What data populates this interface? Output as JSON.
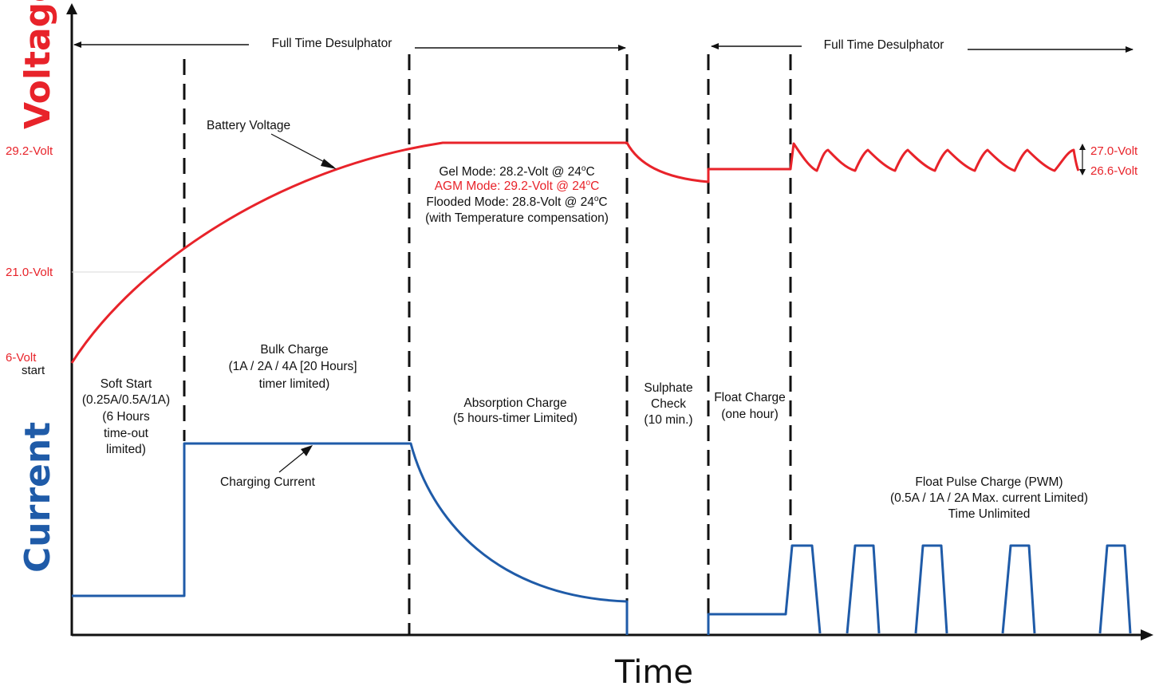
{
  "chart_data": {
    "type": "line",
    "title": "",
    "xlabel": "Time",
    "ylabel_voltage": "Voltage",
    "ylabel_current": "Current",
    "voltage_ticks": [
      "29.2-Volt",
      "21.0-Volt",
      "6-Volt"
    ],
    "voltage_start_label": "start",
    "float_range_labels": [
      "27.0-Volt",
      "26.6-Volt"
    ],
    "desulphator_label_1": "Full Time Desulphator",
    "desulphator_label_2": "Full Time Desulphator",
    "battery_voltage_label": "Battery Voltage",
    "charging_current_label": "Charging Current",
    "absorption_modes": [
      {
        "text": "Gel Mode: 28.2-Volt @ 24",
        "sup": "o",
        "unit": "C",
        "color": "#111111"
      },
      {
        "text": "AGM Mode: 29.2-Volt @ 24",
        "sup": "o",
        "unit": "C",
        "color": "#e8232a"
      },
      {
        "text": "Flooded Mode: 28.8-Volt @ 24",
        "sup": "o",
        "unit": "C",
        "color": "#111111"
      }
    ],
    "temp_comp_label": "(with Temperature compensation)",
    "stages": [
      {
        "name": "Soft Start",
        "lines": [
          "Soft Start",
          "(0.25A/0.5A/1A)",
          "(6 Hours",
          "time-out",
          "limited)"
        ]
      },
      {
        "name": "Bulk Charge",
        "lines": [
          "Bulk Charge",
          "(1A / 2A / 4A [20 Hours]",
          "timer limited)"
        ]
      },
      {
        "name": "Absorption Charge",
        "lines": [
          "Absorption Charge",
          "(5 hours-timer Limited)"
        ]
      },
      {
        "name": "Sulphate Check",
        "lines": [
          "Sulphate",
          "Check",
          "(10 min.)"
        ]
      },
      {
        "name": "Float Charge",
        "lines": [
          "Float Charge",
          "(one hour)"
        ]
      },
      {
        "name": "Float Pulse Charge",
        "lines": [
          "Float Pulse Charge (PWM)",
          "(0.5A / 1A / 2A Max. current Limited)",
          "Time Unlimited"
        ]
      }
    ],
    "voltage_series": {
      "name": "Battery Voltage",
      "color": "#e8232a"
    },
    "current_series": {
      "name": "Charging Current",
      "color": "#1f5ba8"
    },
    "grid": false,
    "legend": "none"
  }
}
